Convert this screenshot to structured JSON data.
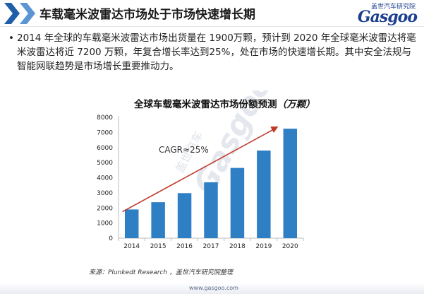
{
  "header": {
    "title": "车载毫米波雷达市场处于市场快速增长期",
    "brand_cn": "盖世汽车研究院",
    "brand_en": "Gasgoo"
  },
  "bullet_text": "2014 年全球的车载毫米波雷达市场出货量在 1900万颗，预计到 2020 年全球毫米波雷达将毫米波雷达将近 7200 万颗，年复合增长率达到25%，处在市场的快速增长期。其中安全法规与智能网联趋势是市场增长重要推动力。",
  "chart_data": {
    "type": "bar",
    "title": "全球车载毫米波雷达市场份额预测",
    "title_unit": "（万颗）",
    "categories": [
      "2014",
      "2015",
      "2016",
      "2017",
      "2018",
      "2019",
      "2020"
    ],
    "values": [
      1900,
      2380,
      2980,
      3700,
      4650,
      5800,
      7250
    ],
    "ylim": [
      0,
      8000
    ],
    "yticks": [
      0,
      1000,
      2000,
      3000,
      4000,
      5000,
      6000,
      7000,
      8000
    ],
    "annotation": "CAGR≈25%",
    "bar_color": "#2f7fc4",
    "arrow_color": "#c0392b"
  },
  "watermark": {
    "cn": "盖世汽车",
    "en": "Gasgoo"
  },
  "source": "来源：Plunkedt Research ，盖世汽车研究院整理",
  "footer_url": "www.gasgoo.com"
}
